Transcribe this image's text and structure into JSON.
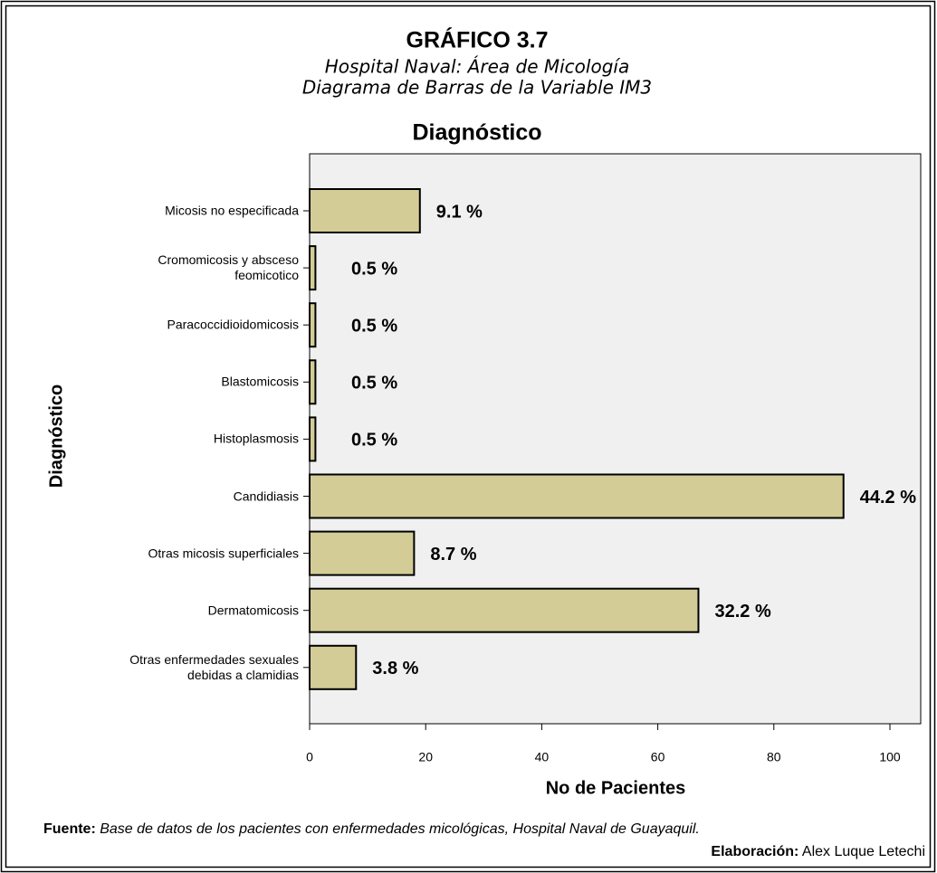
{
  "chart_data": {
    "type": "barh",
    "title": "GRÁFICO 3.7",
    "subtitle": [
      "Hospital Naval: Área de Micología",
      "Diagrama de Barras de la Variable IM3"
    ],
    "chart_title": "Diagnóstico",
    "categories": [
      "Micosis no especificada",
      "Cromomicosis y absceso\nfeomicotico",
      "Paracoccidioidomicosis",
      "Blastomicosis",
      "Histoplasmosis",
      "Candidiasis",
      "Otras micosis superficiales",
      "Dermatomicosis",
      "Otras enfermedades sexuales\ndebidas a clamidias"
    ],
    "values": [
      19,
      1,
      1,
      1,
      1,
      92,
      18,
      67,
      8
    ],
    "bar_labels": [
      "9.1 %",
      "0.5 %",
      "0.5 %",
      "0.5 %",
      "0.5 %",
      "44.2 %",
      "8.7 %",
      "32.2 %",
      "3.8 %"
    ],
    "color": "#d3cc96",
    "xlim": [
      0,
      100
    ],
    "xticks": [
      0,
      20,
      40,
      60,
      80,
      100
    ],
    "xlabel": "No de Pacientes",
    "ylabel": "Diagnóstico",
    "source_label": "Fuente:",
    "source": "Base de datos de los pacientes con enfermedades micológicas, Hospital Naval de Guayaquil.",
    "credit_label": "Elaboración:",
    "credit": "Alex Luque Letechi"
  }
}
